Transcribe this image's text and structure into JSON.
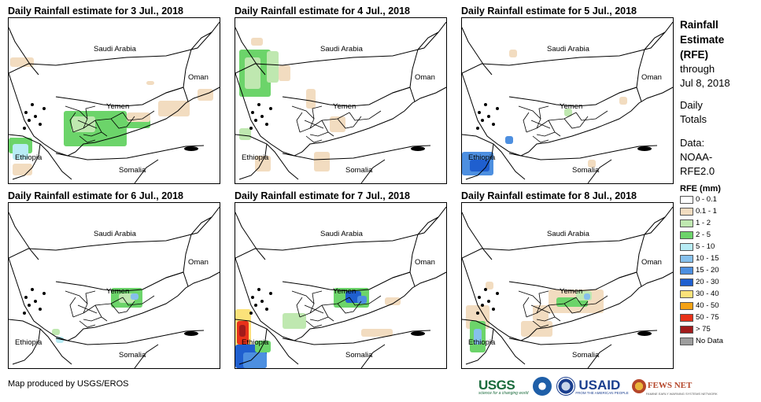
{
  "panels": [
    {
      "title": "Daily Rainfall estimate for 3 Jul., 2018",
      "day": "3 Jul."
    },
    {
      "title": "Daily Rainfall estimate for 4 Jul., 2018",
      "day": "4 Jul."
    },
    {
      "title": "Daily Rainfall estimate for 5 Jul., 2018",
      "day": "5 Jul."
    },
    {
      "title": "Daily Rainfall estimate for 6 Jul., 2018",
      "day": "6 Jul."
    },
    {
      "title": "Daily Rainfall estimate for 7 Jul., 2018",
      "day": "7 Jul."
    },
    {
      "title": "Daily Rainfall estimate for 8 Jul., 2018",
      "day": "8 Jul."
    }
  ],
  "countries": {
    "saudi": "Saudi Arabia",
    "oman": "Oman",
    "yemen": "Yemen",
    "ethiopia": "Ethiopia",
    "somalia": "Somalia"
  },
  "sidebar": {
    "heading_line1": "Rainfall",
    "heading_line2": "Estimate",
    "heading_line3": "(RFE)",
    "through": "through",
    "date": "Jul 8, 2018",
    "daily": "Daily",
    "totals": "Totals",
    "data_label": "Data:",
    "data_source1": "NOAA-",
    "data_source2": "RFE2.0"
  },
  "legend": {
    "title": "RFE (mm)",
    "items": [
      {
        "label": "0 - 0.1",
        "color": "#ffffff"
      },
      {
        "label": "0.1 - 1",
        "color": "#f2dcc0"
      },
      {
        "label": "1 - 2",
        "color": "#bfe8b0"
      },
      {
        "label": "2 - 5",
        "color": "#6cd46a"
      },
      {
        "label": "5 - 10",
        "color": "#b8ecf5"
      },
      {
        "label": "10 - 15",
        "color": "#86c0ec"
      },
      {
        "label": "15 - 20",
        "color": "#4d8fe0"
      },
      {
        "label": "20 - 30",
        "color": "#1f5fcf"
      },
      {
        "label": "30 - 40",
        "color": "#fbe27a"
      },
      {
        "label": "40 - 50",
        "color": "#f4a214"
      },
      {
        "label": "50 - 75",
        "color": "#e8321a"
      },
      {
        "label": "> 75",
        "color": "#a11b1b"
      },
      {
        "label": "No Data",
        "color": "#9e9e9e"
      }
    ]
  },
  "credit": "Map produced by USGS/EROS",
  "logos": {
    "usgs": "USGS",
    "usgs_tagline": "science for a changing world",
    "usaid": "USAID",
    "usaid_tagline": "FROM THE AMERICAN PEOPLE",
    "fews": "FEWS NET",
    "fews_tagline": "FAMINE EARLY WARNING SYSTEMS NETWORK",
    "noaa_color": "#1f5fa8",
    "usgs_color": "#1a6b3c",
    "usaid_color": "#1b3f8f",
    "fews_color": "#b5462a"
  }
}
